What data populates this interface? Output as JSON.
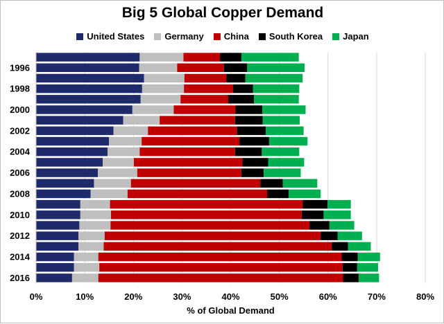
{
  "chart_data": {
    "type": "bar",
    "orientation": "horizontal",
    "stacked": true,
    "title": "Big 5 Global Copper Demand",
    "xlabel": "% of Global Demand",
    "ylabel": "",
    "xlim": [
      0,
      80
    ],
    "x_ticks": [
      "0%",
      "10%",
      "20%",
      "30%",
      "40%",
      "50%",
      "60%",
      "70%",
      "80%"
    ],
    "grid": true,
    "legend_position": "top",
    "categories": [
      "1995",
      "1996",
      "1997",
      "1998",
      "1999",
      "2000",
      "2001",
      "2002",
      "2003",
      "2004",
      "2005",
      "2006",
      "2007",
      "2008",
      "2009",
      "2010",
      "2011",
      "2012",
      "2013",
      "2014",
      "2015",
      "2016"
    ],
    "category_labels": [
      "",
      "1996",
      "",
      "1998",
      "",
      "2000",
      "",
      "2002",
      "",
      "2004",
      "",
      "2006",
      "",
      "2008",
      "",
      "2010",
      "",
      "2012",
      "",
      "2014",
      "",
      "2016"
    ],
    "series": [
      {
        "name": "United States",
        "color": "#1f2a6b",
        "values": [
          21.3,
          21.2,
          22.2,
          21.8,
          21.5,
          19.8,
          17.9,
          15.9,
          15.0,
          14.7,
          13.7,
          12.7,
          11.9,
          11.2,
          9.1,
          9.1,
          8.9,
          8.7,
          8.7,
          7.8,
          7.8,
          7.4
        ]
      },
      {
        "name": "Germany",
        "color": "#bfbfbf",
        "values": [
          9.0,
          7.8,
          8.3,
          8.6,
          8.2,
          8.5,
          7.5,
          7.1,
          6.7,
          6.6,
          6.4,
          8.1,
          7.6,
          7.6,
          6.1,
          6.3,
          6.4,
          5.4,
          5.2,
          5.0,
          5.2,
          5.4
        ]
      },
      {
        "name": "China",
        "color": "#c00000",
        "values": [
          7.5,
          9.6,
          8.6,
          10.1,
          9.8,
          12.7,
          15.5,
          18.3,
          20.1,
          19.6,
          22.3,
          21.4,
          26.6,
          28.7,
          39.6,
          39.2,
          40.9,
          44.4,
          46.9,
          50.0,
          50.0,
          50.3
        ]
      },
      {
        "name": "South Korea",
        "color": "#000000",
        "values": [
          4.4,
          4.8,
          3.9,
          4.1,
          5.3,
          5.5,
          5.7,
          5.9,
          6.1,
          5.5,
          5.3,
          4.6,
          4.6,
          4.4,
          5.1,
          4.5,
          4.1,
          3.5,
          3.3,
          3.3,
          3.0,
          3.2
        ]
      },
      {
        "name": "Japan",
        "color": "#00b050",
        "values": [
          11.8,
          11.8,
          11.8,
          9.5,
          9.2,
          8.9,
          7.6,
          7.8,
          7.9,
          7.7,
          7.4,
          7.6,
          7.1,
          6.6,
          4.8,
          5.6,
          5.1,
          5.0,
          4.7,
          4.6,
          4.3,
          4.2
        ]
      }
    ]
  }
}
